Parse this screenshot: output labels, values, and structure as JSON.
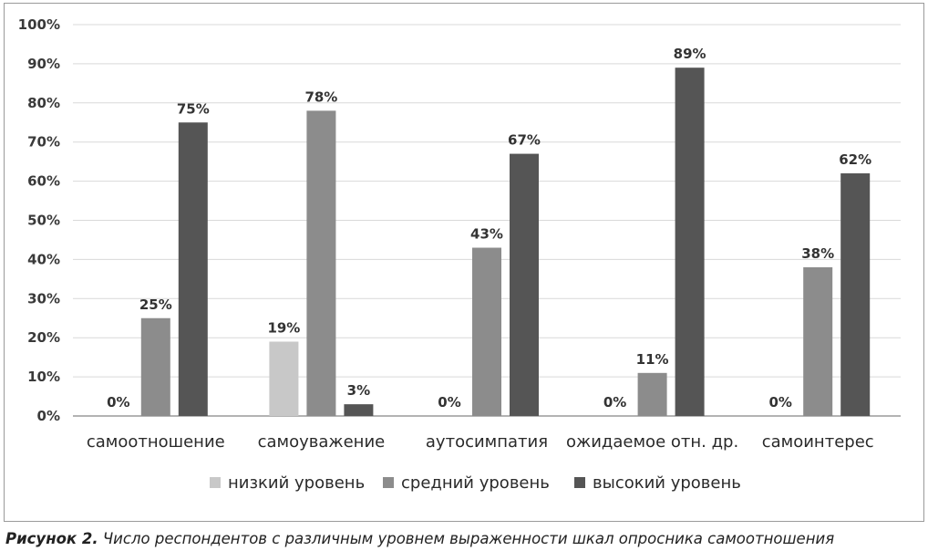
{
  "caption": {
    "label": "Рисунок 2.",
    "text": "Число респондентов с различным уровнем выраженности шкал опросника самоотношения"
  },
  "chart_data": {
    "type": "bar",
    "categories": [
      "самоотношение",
      "самоуважение",
      "аутосимпатия",
      "ожидаемое отн. др.",
      "самоинтерес"
    ],
    "series": [
      {
        "name": "низкий уровень",
        "color": "#c8c8c8",
        "values": [
          0,
          19,
          0,
          0,
          0
        ],
        "labels": [
          "0%",
          "19%",
          "0%",
          "0%",
          "0%"
        ]
      },
      {
        "name": "средний уровень",
        "color": "#8c8c8c",
        "values": [
          25,
          78,
          43,
          11,
          38
        ],
        "labels": [
          "25%",
          "78%",
          "43%",
          "11%",
          "38%"
        ]
      },
      {
        "name": "высокий уровень",
        "color": "#555555",
        "values": [
          75,
          3,
          67,
          89,
          62
        ],
        "labels": [
          "75%",
          "3%",
          "67%",
          "89%",
          "62%"
        ]
      }
    ],
    "ylim": [
      0,
      100
    ],
    "yticks": [
      "0%",
      "10%",
      "20%",
      "30%",
      "40%",
      "50%",
      "60%",
      "70%",
      "80%",
      "90%",
      "100%"
    ],
    "grid": true,
    "legend_position": "bottom"
  }
}
